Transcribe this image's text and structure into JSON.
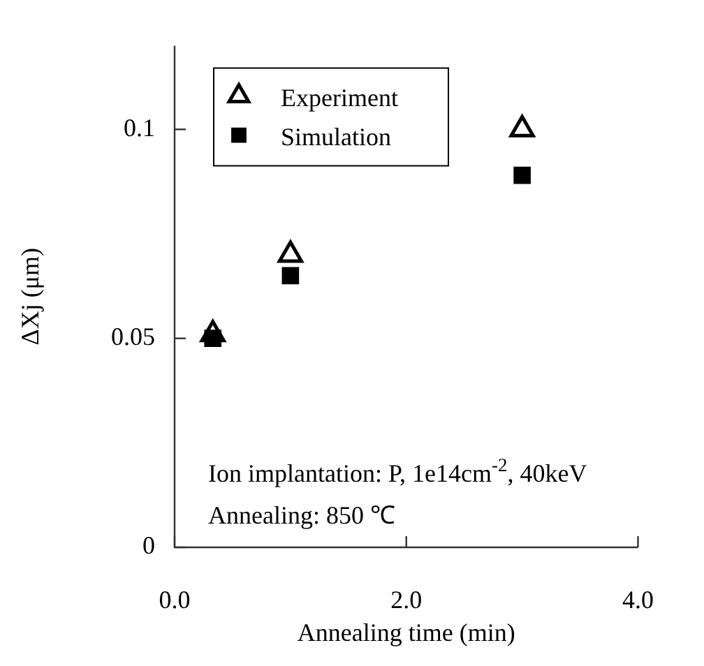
{
  "chart_data": {
    "type": "scatter",
    "xlabel": "Annealing time (min)",
    "ylabel": "ΔXj (μm)",
    "xlim": [
      0,
      4
    ],
    "xticks": [
      {
        "value": 0,
        "label": "0.0"
      },
      {
        "value": 2,
        "label": "2.0"
      },
      {
        "value": 4,
        "label": "4.0"
      }
    ],
    "ylim": [
      0,
      0.12
    ],
    "yticks": [
      0,
      0.05,
      0.1
    ],
    "legend": "top left",
    "grid": false,
    "series": [
      {
        "name": "Experiment",
        "color": "#000000",
        "marker": "triangle",
        "x": [
          0.33,
          1,
          3
        ],
        "values": [
          0.051,
          0.07,
          0.1
        ]
      },
      {
        "name": "Simulation",
        "color": "#000000",
        "marker": "square",
        "x": [
          0.33,
          1,
          3
        ],
        "values": [
          0.05,
          0.065,
          0.089
        ]
      }
    ],
    "annotations": [
      "Ion implantation: P, 1e14cm$^{-2}$, 40keV",
      "Annealing: 850 ℃"
    ]
  }
}
